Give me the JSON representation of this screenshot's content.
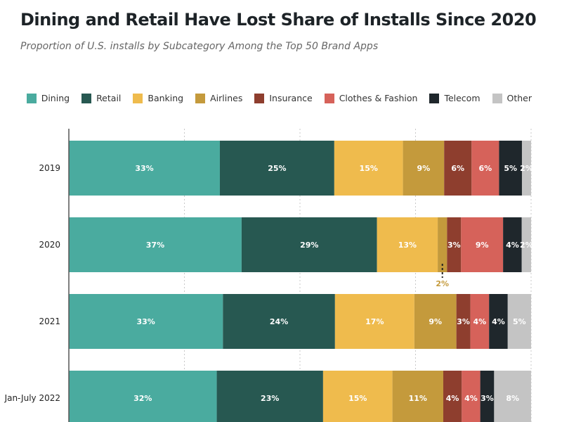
{
  "chart_data": {
    "type": "bar",
    "orientation": "horizontal",
    "stacked": true,
    "title": "Dining and Retail Have Lost Share of Installs Since 2020",
    "subtitle": "Proportion of U.S. installs by Subcategory Among the Top 50 Brand Apps",
    "xlabel": "",
    "ylabel": "",
    "xlim": [
      0,
      100
    ],
    "grid": true,
    "legend_position": "top-right",
    "categories": [
      "2019",
      "2020",
      "2021",
      "Jan-July 2022"
    ],
    "series": [
      {
        "name": "Dining",
        "color": "#4aab9f",
        "values": [
          33,
          37,
          33,
          32
        ]
      },
      {
        "name": "Retail",
        "color": "#275851",
        "values": [
          25,
          29,
          24,
          23
        ]
      },
      {
        "name": "Banking",
        "color": "#efbb4d",
        "values": [
          15,
          13,
          17,
          15
        ]
      },
      {
        "name": "Airlines",
        "color": "#c49a3c",
        "values": [
          9,
          2,
          9,
          11
        ]
      },
      {
        "name": "Insurance",
        "color": "#8e3e2e",
        "values": [
          6,
          3,
          3,
          4
        ]
      },
      {
        "name": "Clothes & Fashion",
        "color": "#d6625a",
        "values": [
          6,
          9,
          4,
          4
        ]
      },
      {
        "name": "Telecom",
        "color": "#1f272c",
        "values": [
          5,
          4,
          4,
          3
        ]
      },
      {
        "name": "Other",
        "color": "#c4c4c4",
        "values": [
          2,
          2,
          5,
          8
        ]
      }
    ]
  }
}
